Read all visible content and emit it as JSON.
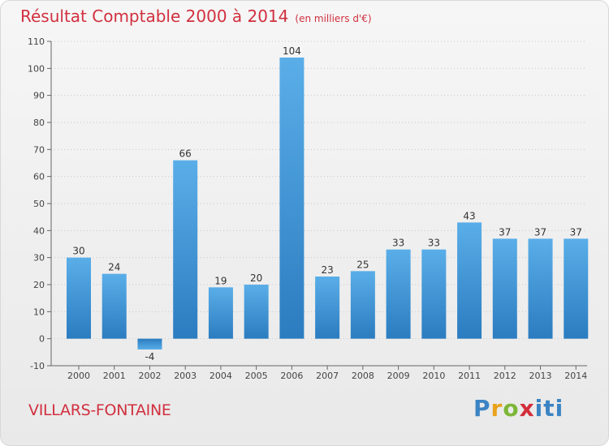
{
  "title": "Résultat Comptable 2000 à 2014",
  "subtitle": "(en milliers d'€)",
  "commune": "VILLARS-FONTAINE",
  "logo": {
    "p": "P",
    "r": "r",
    "o": "o",
    "x": "x",
    "i": "iti"
  },
  "colors": {
    "title": "#d1303f",
    "bar_top": "#5aaee8",
    "bar_bottom": "#2b7cc0"
  },
  "chart_data": {
    "type": "bar",
    "categories": [
      "2000",
      "2001",
      "2002",
      "2003",
      "2004",
      "2005",
      "2006",
      "2007",
      "2008",
      "2009",
      "2010",
      "2011",
      "2012",
      "2013",
      "2014"
    ],
    "values": [
      30,
      24,
      -4,
      66,
      19,
      20,
      104,
      23,
      25,
      33,
      33,
      43,
      37,
      37,
      37
    ],
    "ylim": [
      -10,
      110
    ],
    "yticks": [
      -10,
      0,
      10,
      20,
      30,
      40,
      50,
      60,
      70,
      80,
      90,
      100,
      110
    ],
    "grid": true
  }
}
